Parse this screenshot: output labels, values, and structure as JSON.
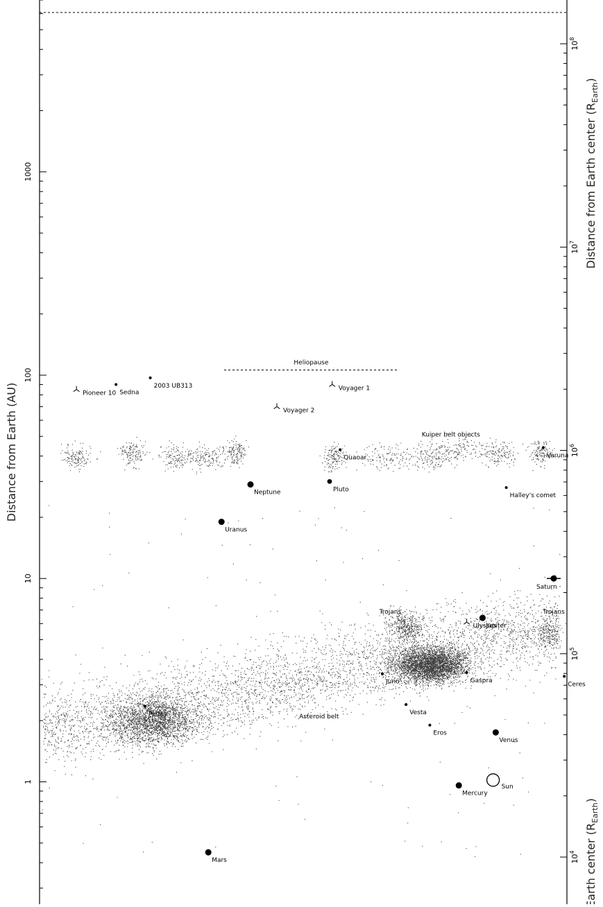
{
  "chart_data": {
    "type": "scatter",
    "x_axis": "none",
    "y_scale": "log",
    "ylabel_left": "Distance from Earth (AU)",
    "ylabel_right": "Distance from Earth center (R",
    "ylabel_right_sub": "Earth",
    "ylabel_right_close": ")",
    "ylabel_right_bottom": "Earth center (R",
    "left_ticks": [
      {
        "value": 1,
        "label": "1"
      },
      {
        "value": 10,
        "label": "10"
      },
      {
        "value": 100,
        "label": "100"
      },
      {
        "value": 1000,
        "label": "1000"
      }
    ],
    "right_ticks": [
      {
        "base": "10",
        "exp": "4",
        "value_au": 0.4264
      },
      {
        "base": "10",
        "exp": "5",
        "value_au": 4.264
      },
      {
        "base": "10",
        "exp": "6",
        "value_au": 42.64
      },
      {
        "base": "10",
        "exp": "7",
        "value_au": 426.4
      },
      {
        "base": "10",
        "exp": "8",
        "value_au": 4264
      }
    ],
    "ylim": [
      0.25,
      7000
    ],
    "reference_lines": [
      {
        "name": "Heliopause",
        "y": 106,
        "x_start": 0.35,
        "x_end": 0.68
      }
    ],
    "objects": [
      {
        "name": "Sun",
        "x": 0.86,
        "y": 1.02,
        "marker": "open-circle"
      },
      {
        "name": "Mercury",
        "x": 0.795,
        "y": 0.96,
        "marker": "large-dot"
      },
      {
        "name": "Venus",
        "x": 0.865,
        "y": 1.75,
        "marker": "large-dot"
      },
      {
        "name": "Mars",
        "x": 0.32,
        "y": 0.45,
        "marker": "large-dot"
      },
      {
        "name": "Jupiter",
        "x": 0.84,
        "y": 6.4,
        "marker": "large-dot"
      },
      {
        "name": "Saturn",
        "x": 0.975,
        "y": 10,
        "marker": "ringed"
      },
      {
        "name": "Uranus",
        "x": 0.345,
        "y": 19,
        "marker": "large-dot"
      },
      {
        "name": "Neptune",
        "x": 0.4,
        "y": 29,
        "marker": "large-dot"
      },
      {
        "name": "Pluto",
        "x": 0.55,
        "y": 30,
        "marker": "dot"
      },
      {
        "name": "Quaoar",
        "x": 0.57,
        "y": 43,
        "marker": "small-dot"
      },
      {
        "name": "Varuna",
        "x": 0.955,
        "y": 44,
        "marker": "small-dot"
      },
      {
        "name": "Halley's comet",
        "x": 0.885,
        "y": 28,
        "marker": "small-dot"
      },
      {
        "name": "Sedna",
        "x": 0.145,
        "y": 90,
        "marker": "small-dot"
      },
      {
        "name": "2003 UB313",
        "x": 0.21,
        "y": 97,
        "marker": "small-dot"
      },
      {
        "name": "Pioneer 10",
        "x": 0.07,
        "y": 85,
        "marker": "spacecraft"
      },
      {
        "name": "Voyager 1",
        "x": 0.555,
        "y": 90,
        "marker": "spacecraft"
      },
      {
        "name": "Voyager 2",
        "x": 0.45,
        "y": 70,
        "marker": "spacecraft"
      },
      {
        "name": "Ulysses",
        "x": 0.81,
        "y": 6.1,
        "marker": "spacecraft"
      },
      {
        "name": "Ceres",
        "x": 0.995,
        "y": 3.3,
        "marker": "small-dot"
      },
      {
        "name": "Pallas",
        "x": 0.2,
        "y": 2.35,
        "marker": "small-dot"
      },
      {
        "name": "Juno",
        "x": 0.65,
        "y": 3.4,
        "marker": "small-dot"
      },
      {
        "name": "Vesta",
        "x": 0.695,
        "y": 2.4,
        "marker": "small-dot"
      },
      {
        "name": "Eros",
        "x": 0.74,
        "y": 1.9,
        "marker": "small-dot"
      },
      {
        "name": "Gaspra",
        "x": 0.81,
        "y": 3.45,
        "marker": "small-dot"
      }
    ],
    "annotations": [
      {
        "text": "Kuiper belt objects",
        "x": 0.78,
        "y": 50
      },
      {
        "text": "Asteroid belt",
        "x": 0.53,
        "y": 2.05
      },
      {
        "text": "Trojans",
        "x": 0.665,
        "y": 6.7
      },
      {
        "text": "Trojans",
        "x": 0.975,
        "y": 6.7
      }
    ],
    "populations": [
      {
        "name": "Asteroid belt",
        "points": 9000
      },
      {
        "name": "Kuiper belt objects",
        "points": 1500
      }
    ]
  }
}
